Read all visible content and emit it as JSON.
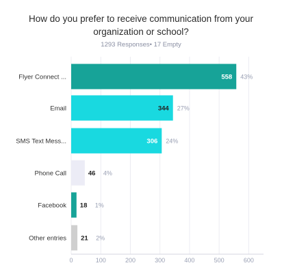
{
  "title_line1": "How do you prefer to receive communication from your",
  "title_line2": "organization or school?",
  "subtitle": "1293 Responses• 17 Empty",
  "chart_data": {
    "type": "bar",
    "orientation": "horizontal",
    "title": "How do you prefer to receive communication from your organization or school?",
    "categories": [
      "Flyer Connect ...",
      "Email",
      "SMS Text Mess...",
      "Phone Call",
      "Facebook",
      "Other entries"
    ],
    "values": [
      558,
      344,
      306,
      46,
      18,
      21
    ],
    "percent_labels": [
      "43%",
      "27%",
      "24%",
      "4%",
      "1%",
      "2%"
    ],
    "bar_colors": [
      "#17a398",
      "#19d9e0",
      "#19d9e0",
      "#ececf6",
      "#17a398",
      "#cfcfcf"
    ],
    "value_label_colors": [
      "#ffffff",
      "#222222",
      "#ffffff",
      "#222222",
      "#222222",
      "#222222"
    ],
    "xlim": [
      0,
      650
    ],
    "xticks": [
      0,
      100,
      200,
      300,
      400,
      500,
      600
    ],
    "grid": true
  }
}
